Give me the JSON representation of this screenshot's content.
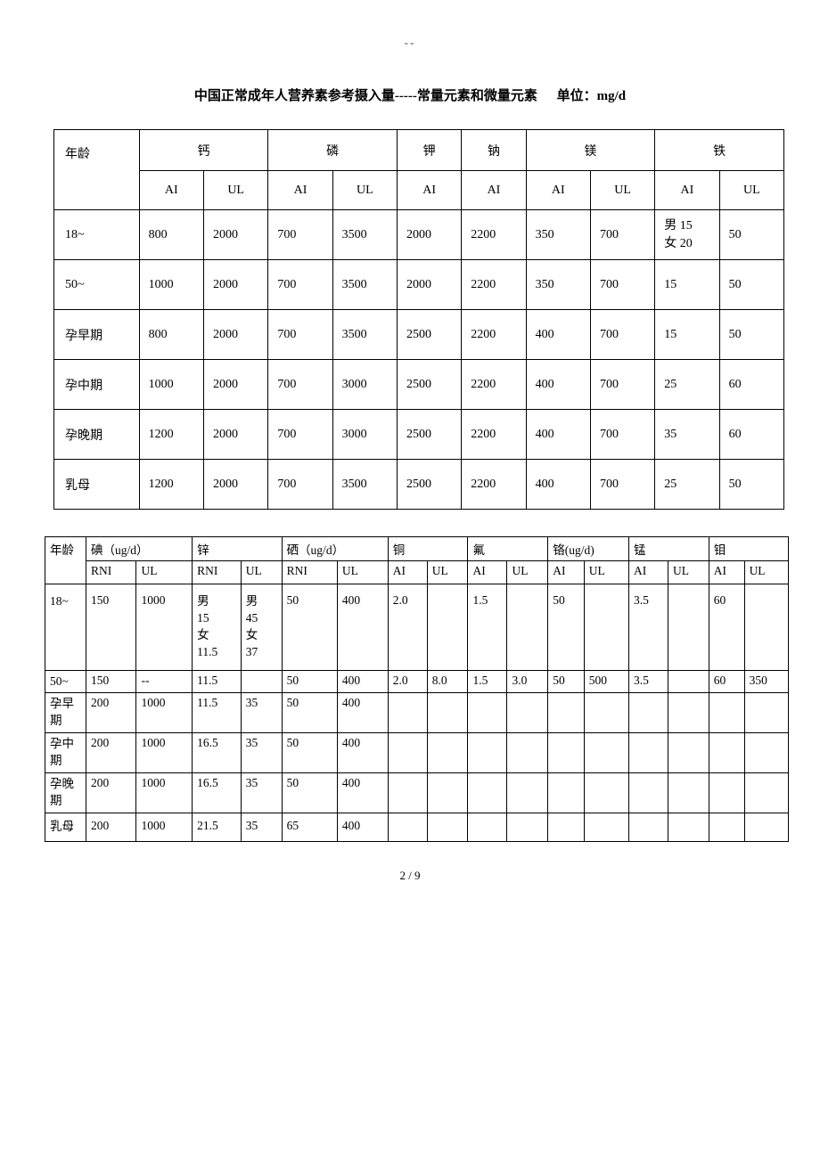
{
  "nav_mark": "--",
  "title_main": "中国正常成年人营养素参考摄入量-----常量元素和微量元素",
  "title_unit": "单位：mg/d",
  "page_number": "2 / 9",
  "table1": {
    "header_age": "年龄",
    "nutrients": [
      "钙",
      "磷",
      "钾",
      "钠",
      "镁",
      "铁"
    ],
    "sub": {
      "ai": "AI",
      "ul": "UL"
    },
    "rows": [
      {
        "age": "18~",
        "ca_ai": "800",
        "ca_ul": "2000",
        "p_ai": "700",
        "p_ul": "3500",
        "k_ai": "2000",
        "na_ai": "2200",
        "mg_ai": "350",
        "mg_ul": "700",
        "fe_ai": "男 15\n女 20",
        "fe_ul": "50"
      },
      {
        "age": "50~",
        "ca_ai": "1000",
        "ca_ul": "2000",
        "p_ai": "700",
        "p_ul": "3500",
        "k_ai": "2000",
        "na_ai": "2200",
        "mg_ai": "350",
        "mg_ul": "700",
        "fe_ai": "15",
        "fe_ul": "50"
      },
      {
        "age": "孕早期",
        "ca_ai": "800",
        "ca_ul": "2000",
        "p_ai": "700",
        "p_ul": "3500",
        "k_ai": "2500",
        "na_ai": "2200",
        "mg_ai": "400",
        "mg_ul": "700",
        "fe_ai": "15",
        "fe_ul": "50"
      },
      {
        "age": "孕中期",
        "ca_ai": "1000",
        "ca_ul": "2000",
        "p_ai": "700",
        "p_ul": "3000",
        "k_ai": "2500",
        "na_ai": "2200",
        "mg_ai": "400",
        "mg_ul": "700",
        "fe_ai": "25",
        "fe_ul": "60"
      },
      {
        "age": "孕晚期",
        "ca_ai": "1200",
        "ca_ul": "2000",
        "p_ai": "700",
        "p_ul": "3000",
        "k_ai": "2500",
        "na_ai": "2200",
        "mg_ai": "400",
        "mg_ul": "700",
        "fe_ai": "35",
        "fe_ul": "60"
      },
      {
        "age": "乳母",
        "ca_ai": "1200",
        "ca_ul": "2000",
        "p_ai": "700",
        "p_ul": "3500",
        "k_ai": "2500",
        "na_ai": "2200",
        "mg_ai": "400",
        "mg_ul": "700",
        "fe_ai": "25",
        "fe_ul": "50"
      }
    ]
  },
  "table2": {
    "header_age": "年龄",
    "nutrients": [
      "碘（ug/d）",
      "锌",
      "硒（ug/d）",
      "铜",
      "氟",
      "铬(ug/d)",
      "锰",
      "钼"
    ],
    "sub": {
      "rni": "RNI",
      "ul": "UL",
      "ai": "AI"
    },
    "rows": [
      {
        "age": "18~",
        "i_rni": "150",
        "i_ul": "1000",
        "zn_rni": "男\n15\n女\n11.5",
        "zn_ul": "男\n45\n女\n37",
        "se_rni": "50",
        "se_ul": "400",
        "cu_ai": "2.0",
        "cu_ul": "",
        "f_ai": "1.5",
        "f_ul": "",
        "cr_ai": "50",
        "cr_ul": "",
        "mn_ai": "3.5",
        "mn_ul": "",
        "mo_ai": "60",
        "mo_ul": ""
      },
      {
        "age": "50~",
        "i_rni": "150",
        "i_ul": "--",
        "zn_rni": "11.5",
        "zn_ul": "",
        "se_rni": "50",
        "se_ul": "400",
        "cu_ai": "2.0",
        "cu_ul": "8.0",
        "f_ai": "1.5",
        "f_ul": "3.0",
        "cr_ai": "50",
        "cr_ul": "500",
        "mn_ai": "3.5",
        "mn_ul": "",
        "mo_ai": "60",
        "mo_ul": "350"
      },
      {
        "age": "孕早\n期",
        "i_rni": "200",
        "i_ul": "1000",
        "zn_rni": "11.5",
        "zn_ul": "35",
        "se_rni": "50",
        "se_ul": "400",
        "cu_ai": "",
        "cu_ul": "",
        "f_ai": "",
        "f_ul": "",
        "cr_ai": "",
        "cr_ul": "",
        "mn_ai": "",
        "mn_ul": "",
        "mo_ai": "",
        "mo_ul": ""
      },
      {
        "age": "孕中\n期",
        "i_rni": "200",
        "i_ul": "1000",
        "zn_rni": "16.5",
        "zn_ul": "35",
        "se_rni": "50",
        "se_ul": "400",
        "cu_ai": "",
        "cu_ul": "",
        "f_ai": "",
        "f_ul": "",
        "cr_ai": "",
        "cr_ul": "",
        "mn_ai": "",
        "mn_ul": "",
        "mo_ai": "",
        "mo_ul": ""
      },
      {
        "age": "孕晚\n期",
        "i_rni": "200",
        "i_ul": "1000",
        "zn_rni": "16.5",
        "zn_ul": "35",
        "se_rni": "50",
        "se_ul": "400",
        "cu_ai": "",
        "cu_ul": "",
        "f_ai": "",
        "f_ul": "",
        "cr_ai": "",
        "cr_ul": "",
        "mn_ai": "",
        "mn_ul": "",
        "mo_ai": "",
        "mo_ul": ""
      },
      {
        "age": "乳母",
        "i_rni": "200",
        "i_ul": "1000",
        "zn_rni": "21.5",
        "zn_ul": "35",
        "se_rni": "65",
        "se_ul": "400",
        "cu_ai": "",
        "cu_ul": "",
        "f_ai": "",
        "f_ul": "",
        "cr_ai": "",
        "cr_ul": "",
        "mn_ai": "",
        "mn_ul": "",
        "mo_ai": "",
        "mo_ul": ""
      }
    ]
  }
}
